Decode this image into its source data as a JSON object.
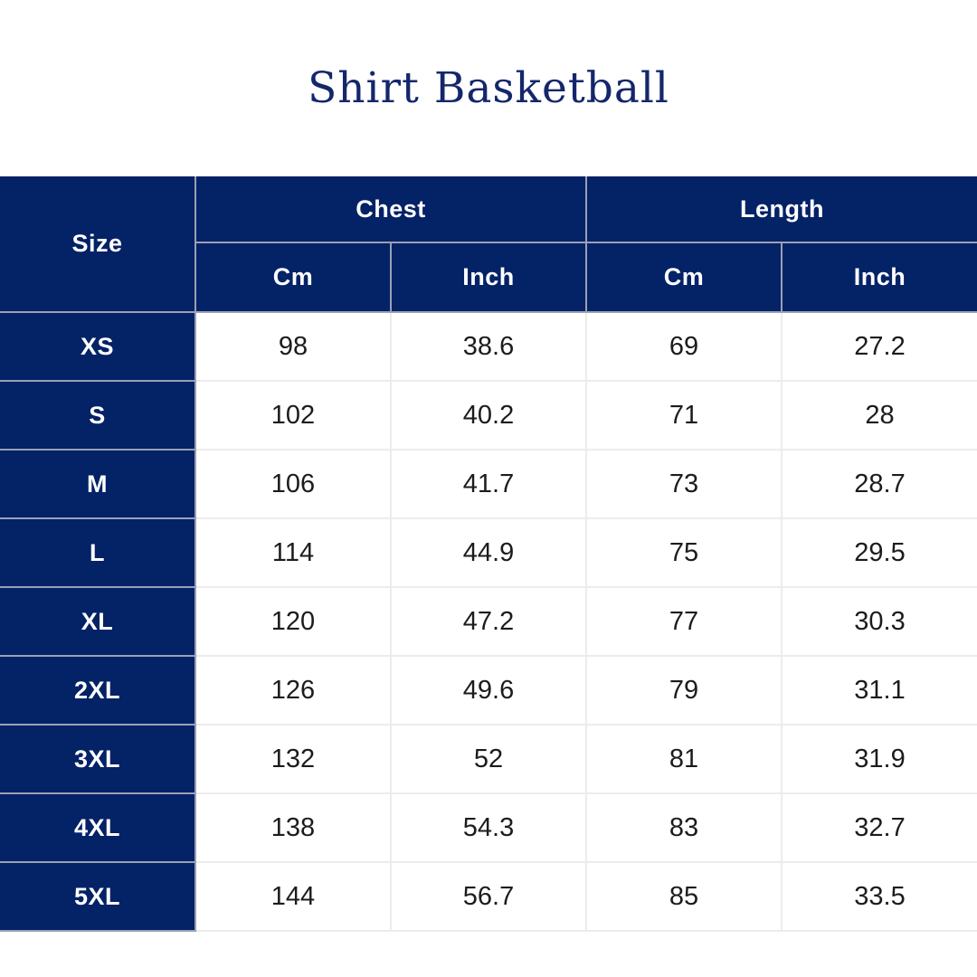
{
  "page": {
    "title": "Shirt Basketball",
    "background_color": "#ffffff",
    "accent_navy": "#042266",
    "title_color": "#14276b",
    "header_text_color": "#ffffff",
    "body_text_color": "#1c1c1c",
    "grid_line_header_color": "#99a1b6",
    "grid_line_body_color": "#ececec"
  },
  "table": {
    "corner_header": "Size",
    "group_headers": [
      {
        "label": "Chest"
      },
      {
        "label": "Length"
      }
    ],
    "unit_headers": {
      "chest_cm": "Cm",
      "chest_inch": "Inch",
      "length_cm": "Cm",
      "length_inch": "Inch"
    },
    "rows": [
      {
        "size": "XS",
        "chest_cm": "98",
        "chest_inch": "38.6",
        "length_cm": "69",
        "length_inch": "27.2"
      },
      {
        "size": "S",
        "chest_cm": "102",
        "chest_inch": "40.2",
        "length_cm": "71",
        "length_inch": "28"
      },
      {
        "size": "M",
        "chest_cm": "106",
        "chest_inch": "41.7",
        "length_cm": "73",
        "length_inch": "28.7"
      },
      {
        "size": "L",
        "chest_cm": "114",
        "chest_inch": "44.9",
        "length_cm": "75",
        "length_inch": "29.5"
      },
      {
        "size": "XL",
        "chest_cm": "120",
        "chest_inch": "47.2",
        "length_cm": "77",
        "length_inch": "30.3"
      },
      {
        "size": "2XL",
        "chest_cm": "126",
        "chest_inch": "49.6",
        "length_cm": "79",
        "length_inch": "31.1"
      },
      {
        "size": "3XL",
        "chest_cm": "132",
        "chest_inch": "52",
        "length_cm": "81",
        "length_inch": "31.9"
      },
      {
        "size": "4XL",
        "chest_cm": "138",
        "chest_inch": "54.3",
        "length_cm": "83",
        "length_inch": "32.7"
      },
      {
        "size": "5XL",
        "chest_cm": "144",
        "chest_inch": "56.7",
        "length_cm": "85",
        "length_inch": "33.5"
      }
    ]
  }
}
